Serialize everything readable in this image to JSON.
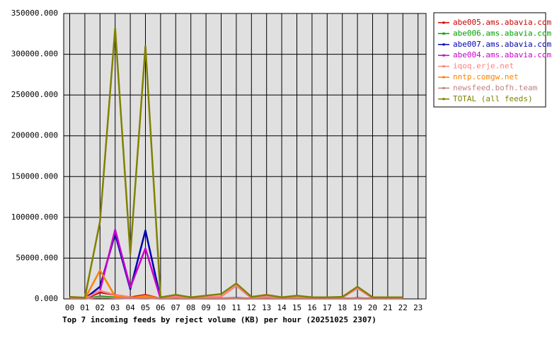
{
  "chart_data": {
    "type": "line",
    "title": "Top 7 incoming feeds by reject volume (KB) per hour (20251025 2307)",
    "categories": [
      "00",
      "01",
      "02",
      "03",
      "04",
      "05",
      "06",
      "07",
      "08",
      "09",
      "10",
      "11",
      "12",
      "13",
      "14",
      "15",
      "16",
      "17",
      "18",
      "19",
      "20",
      "21",
      "22",
      "23"
    ],
    "ylim": [
      0,
      350000
    ],
    "yticks": [
      {
        "value": 0,
        "label": "0.000"
      },
      {
        "value": 50000,
        "label": "50000.000"
      },
      {
        "value": 100000,
        "label": "100000.000"
      },
      {
        "value": 150000,
        "label": "150000.000"
      },
      {
        "value": 200000,
        "label": "200000.000"
      },
      {
        "value": 250000,
        "label": "250000.000"
      },
      {
        "value": 300000,
        "label": "300000.000"
      },
      {
        "value": 350000,
        "label": "350000.000"
      }
    ],
    "grid": true,
    "legend": "right",
    "series": [
      {
        "name": "abe005.ams.abavia.com",
        "color": "#cc0000",
        "values": [
          500,
          300,
          8000,
          5000,
          2000,
          5000,
          300,
          500,
          300,
          500,
          800,
          1000,
          500,
          500,
          300,
          500,
          300,
          300,
          300,
          1000,
          300,
          300,
          300,
          null
        ]
      },
      {
        "name": "abe006.ams.abavia.com",
        "color": "#00a000",
        "values": [
          300,
          300,
          3000,
          2000,
          1000,
          2000,
          300,
          300,
          300,
          300,
          300,
          500,
          300,
          300,
          300,
          300,
          300,
          300,
          300,
          500,
          300,
          300,
          300,
          null
        ]
      },
      {
        "name": "abe007.ams.abavia.com",
        "color": "#0000b0",
        "values": [
          300,
          300,
          15000,
          80000,
          12000,
          84000,
          300,
          300,
          300,
          300,
          300,
          1000,
          300,
          300,
          300,
          300,
          300,
          300,
          300,
          800,
          300,
          300,
          300,
          null
        ]
      },
      {
        "name": "abe004.ams.abavia.com",
        "color": "#cc00cc",
        "values": [
          300,
          300,
          10000,
          85000,
          14000,
          62000,
          300,
          300,
          300,
          300,
          300,
          800,
          300,
          300,
          300,
          300,
          300,
          300,
          300,
          700,
          300,
          300,
          300,
          null
        ]
      },
      {
        "name": "iqoq.erje.net",
        "color": "#ff8080",
        "values": [
          1000,
          500,
          10000,
          5000,
          2000,
          2000,
          500,
          3000,
          1000,
          2000,
          3000,
          16000,
          1000,
          3000,
          1000,
          2000,
          1000,
          1000,
          1500,
          13000,
          1000,
          1000,
          1000,
          null
        ]
      },
      {
        "name": "nntp.comgw.net",
        "color": "#ff8000",
        "values": [
          200,
          200,
          35000,
          3000,
          1000,
          4000,
          200,
          300,
          200,
          300,
          300,
          500,
          200,
          300,
          200,
          300,
          200,
          200,
          200,
          400,
          200,
          200,
          200,
          null
        ]
      },
      {
        "name": "newsfeed.bofh.team",
        "color": "#c08080",
        "values": [
          300,
          200,
          2000,
          1000,
          500,
          1000,
          200,
          500,
          300,
          500,
          600,
          700,
          300,
          500,
          300,
          500,
          300,
          300,
          300,
          600,
          300,
          300,
          300,
          null
        ]
      },
      {
        "name": "TOTAL (all feeds)",
        "color": "#808000",
        "values": [
          2500,
          1500,
          95000,
          332000,
          55000,
          310000,
          2000,
          5000,
          2000,
          4000,
          6000,
          19000,
          2500,
          5000,
          2000,
          4000,
          2000,
          2000,
          2500,
          15000,
          2000,
          2000,
          2000,
          null
        ]
      }
    ]
  }
}
